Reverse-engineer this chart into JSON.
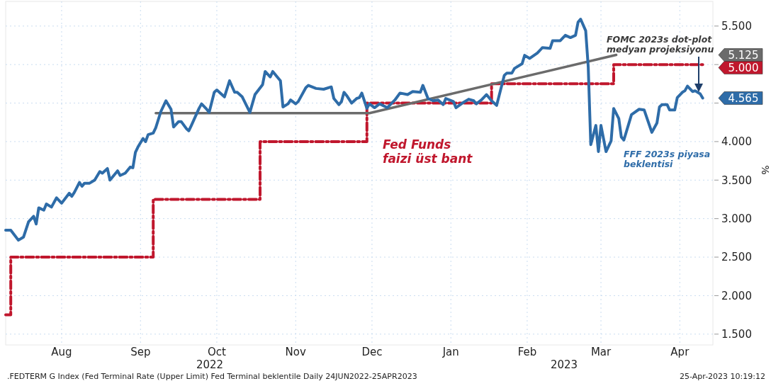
{
  "chart_data": {
    "type": "line",
    "ylabel": "%",
    "annotations": [
      "2022",
      "2023",
      ".FEDTERM G Index (Fed Terminal Rate (Upper Limit) Fed Terminal beklentile  Daily 24JUN2022-25APR2023",
      "25-Apr-2023 10:19:12",
      "4.565",
      "5.000",
      "5.125"
    ],
    "xlim": [
      "2022-07-25",
      "2023-04-29"
    ],
    "xticks": [
      {
        "value": "2022-08-16",
        "label": "Aug"
      },
      {
        "value": "2022-09-16",
        "label": "Sep"
      },
      {
        "value": "2022-10-16",
        "label": "Oct"
      },
      {
        "value": "2022-11-16",
        "label": "Nov"
      },
      {
        "value": "2022-12-16",
        "label": "Dec"
      },
      {
        "value": "2023-01-16",
        "label": "Jan"
      },
      {
        "value": "2023-02-15",
        "label": "Feb"
      },
      {
        "value": "2023-03-16",
        "label": "Mar"
      },
      {
        "value": "2023-04-16",
        "label": "Apr"
      }
    ],
    "ylim": [
      1.36,
      5.82
    ],
    "yticks": [
      {
        "value": 1.5,
        "label": "1.500"
      },
      {
        "value": 2,
        "label": "2.000"
      },
      {
        "value": 2.5,
        "label": "2.500"
      },
      {
        "value": 3,
        "label": "3.000"
      },
      {
        "value": 3.5,
        "label": "3.500"
      },
      {
        "value": 4,
        "label": "4.000"
      },
      {
        "value": 4.5,
        "label": null
      },
      {
        "value": 5,
        "label": null
      },
      {
        "value": 5.5,
        "label": "5.500"
      }
    ],
    "grid": true,
    "legend": false,
    "marker": "none",
    "series": [
      {
        "name": "FFF 2023s piyasa beklentisi",
        "type": "line",
        "color": "#2e6ca8",
        "line_style": "solid",
        "x": [
          "2022-07-25",
          "2022-07-27",
          "2022-07-30",
          "2022-08-01",
          "2022-08-03",
          "2022-08-05",
          "2022-08-06",
          "2022-08-07",
          "2022-08-09",
          "2022-08-10",
          "2022-08-12",
          "2022-08-14",
          "2022-08-16",
          "2022-08-19",
          "2022-08-20",
          "2022-08-21",
          "2022-08-23",
          "2022-08-24",
          "2022-08-25",
          "2022-08-27",
          "2022-08-29",
          "2022-08-31",
          "2022-09-01",
          "2022-09-03",
          "2022-09-04",
          "2022-09-07",
          "2022-09-08",
          "2022-09-10",
          "2022-09-12",
          "2022-09-13",
          "2022-09-14",
          "2022-09-15",
          "2022-09-17",
          "2022-09-18",
          "2022-09-19",
          "2022-09-21",
          "2022-09-22",
          "2022-09-24",
          "2022-09-26",
          "2022-09-28",
          "2022-09-29",
          "2022-10-01",
          "2022-10-02",
          "2022-10-04",
          "2022-10-05",
          "2022-10-06",
          "2022-10-09",
          "2022-10-10",
          "2022-10-12",
          "2022-10-13",
          "2022-10-15",
          "2022-10-16",
          "2022-10-19",
          "2022-10-21",
          "2022-10-23",
          "2022-10-24",
          "2022-10-26",
          "2022-10-29",
          "2022-10-31",
          "2022-11-03",
          "2022-11-04",
          "2022-11-06",
          "2022-11-07",
          "2022-11-09",
          "2022-11-10",
          "2022-11-11",
          "2022-11-13",
          "2022-11-14",
          "2022-11-16",
          "2022-11-17",
          "2022-11-20",
          "2022-11-21",
          "2022-11-24",
          "2022-11-27",
          "2022-11-30",
          "2022-12-01",
          "2022-12-03",
          "2022-12-04",
          "2022-12-05",
          "2022-12-06",
          "2022-12-08",
          "2022-12-10",
          "2022-12-11",
          "2022-12-12",
          "2022-12-14",
          "2022-12-15",
          "2022-12-17",
          "2022-12-19",
          "2022-12-22",
          "2022-12-25",
          "2022-12-27",
          "2022-12-30",
          "2023-01-01",
          "2023-01-04",
          "2023-01-05",
          "2023-01-07",
          "2023-01-09",
          "2023-01-11",
          "2023-01-13",
          "2023-01-14",
          "2023-01-17",
          "2023-01-18",
          "2023-01-21",
          "2023-01-23",
          "2023-01-25",
          "2023-01-26",
          "2023-01-28",
          "2023-01-30",
          "2023-02-01",
          "2023-02-03",
          "2023-02-06",
          "2023-02-07",
          "2023-02-09",
          "2023-02-10",
          "2023-02-13",
          "2023-02-14",
          "2023-02-16",
          "2023-02-19",
          "2023-02-21",
          "2023-02-24",
          "2023-02-25",
          "2023-02-28",
          "2023-03-02",
          "2023-03-04",
          "2023-03-06",
          "2023-03-07",
          "2023-03-08",
          "2023-03-10",
          "2023-03-11",
          "2023-03-12",
          "2023-03-14",
          "2023-03-15",
          "2023-03-16",
          "2023-03-18",
          "2023-03-20",
          "2023-03-21",
          "2023-03-23",
          "2023-03-24",
          "2023-03-25",
          "2023-03-27",
          "2023-03-28",
          "2023-03-31",
          "2023-04-02",
          "2023-04-05",
          "2023-04-07",
          "2023-04-08",
          "2023-04-09",
          "2023-04-11",
          "2023-04-12",
          "2023-04-14",
          "2023-04-15",
          "2023-04-17",
          "2023-04-18",
          "2023-04-19",
          "2023-04-21",
          "2023-04-22",
          "2023-04-24",
          "2023-04-25"
        ],
        "values": [
          2.85,
          2.85,
          2.72,
          2.76,
          2.96,
          3.03,
          2.93,
          3.14,
          3.11,
          3.19,
          3.15,
          3.27,
          3.2,
          3.33,
          3.29,
          3.34,
          3.47,
          3.42,
          3.46,
          3.46,
          3.5,
          3.61,
          3.59,
          3.65,
          3.5,
          3.62,
          3.56,
          3.59,
          3.67,
          3.66,
          3.86,
          3.93,
          4.04,
          4.0,
          4.09,
          4.11,
          4.18,
          4.39,
          4.53,
          4.42,
          4.19,
          4.26,
          4.26,
          4.17,
          4.14,
          4.21,
          4.43,
          4.49,
          4.42,
          4.38,
          4.64,
          4.67,
          4.58,
          4.79,
          4.64,
          4.64,
          4.58,
          4.38,
          4.61,
          4.74,
          4.91,
          4.84,
          4.91,
          4.83,
          4.79,
          4.45,
          4.49,
          4.54,
          4.49,
          4.52,
          4.7,
          4.73,
          4.69,
          4.68,
          4.71,
          4.56,
          4.48,
          4.52,
          4.64,
          4.6,
          4.5,
          4.56,
          4.57,
          4.63,
          4.43,
          4.49,
          4.44,
          4.49,
          4.44,
          4.54,
          4.63,
          4.61,
          4.65,
          4.64,
          4.73,
          4.56,
          4.53,
          4.54,
          4.48,
          4.56,
          4.52,
          4.44,
          4.51,
          4.55,
          4.53,
          4.49,
          4.54,
          4.61,
          4.53,
          4.47,
          4.86,
          4.89,
          4.89,
          4.95,
          5.01,
          5.12,
          5.08,
          5.15,
          5.22,
          5.21,
          5.31,
          5.31,
          5.38,
          5.35,
          5.38,
          5.55,
          5.59,
          5.44,
          4.97,
          3.96,
          4.21,
          3.87,
          4.21,
          3.87,
          4.01,
          4.43,
          4.3,
          4.06,
          4.02,
          4.24,
          4.35,
          4.42,
          4.41,
          4.12,
          4.24,
          4.45,
          4.48,
          4.48,
          4.41,
          4.41,
          4.57,
          4.64,
          4.66,
          4.72,
          4.65,
          4.66,
          4.62,
          4.565
        ]
      },
      {
        "name": "Fed Funds faizi üst bant",
        "type": "step",
        "color": "#c0172d",
        "line_style": "dashed",
        "x": [
          "2022-07-25",
          "2022-07-27",
          "2022-09-21",
          "2022-11-02",
          "2022-12-14",
          "2023-02-01",
          "2023-03-21",
          "2023-04-25"
        ],
        "values": [
          1.75,
          2.5,
          3.25,
          4.0,
          4.5,
          4.75,
          5.0,
          5.0
        ]
      },
      {
        "name": "FOMC 2023s dot-plot medyan projeksiyonu",
        "type": "line",
        "color": "#6b6b6b",
        "line_style": "solid",
        "x": [
          "2022-09-22",
          "2022-12-15",
          "2023-03-22"
        ],
        "values": [
          4.37,
          4.37,
          5.125
        ]
      }
    ]
  }
}
